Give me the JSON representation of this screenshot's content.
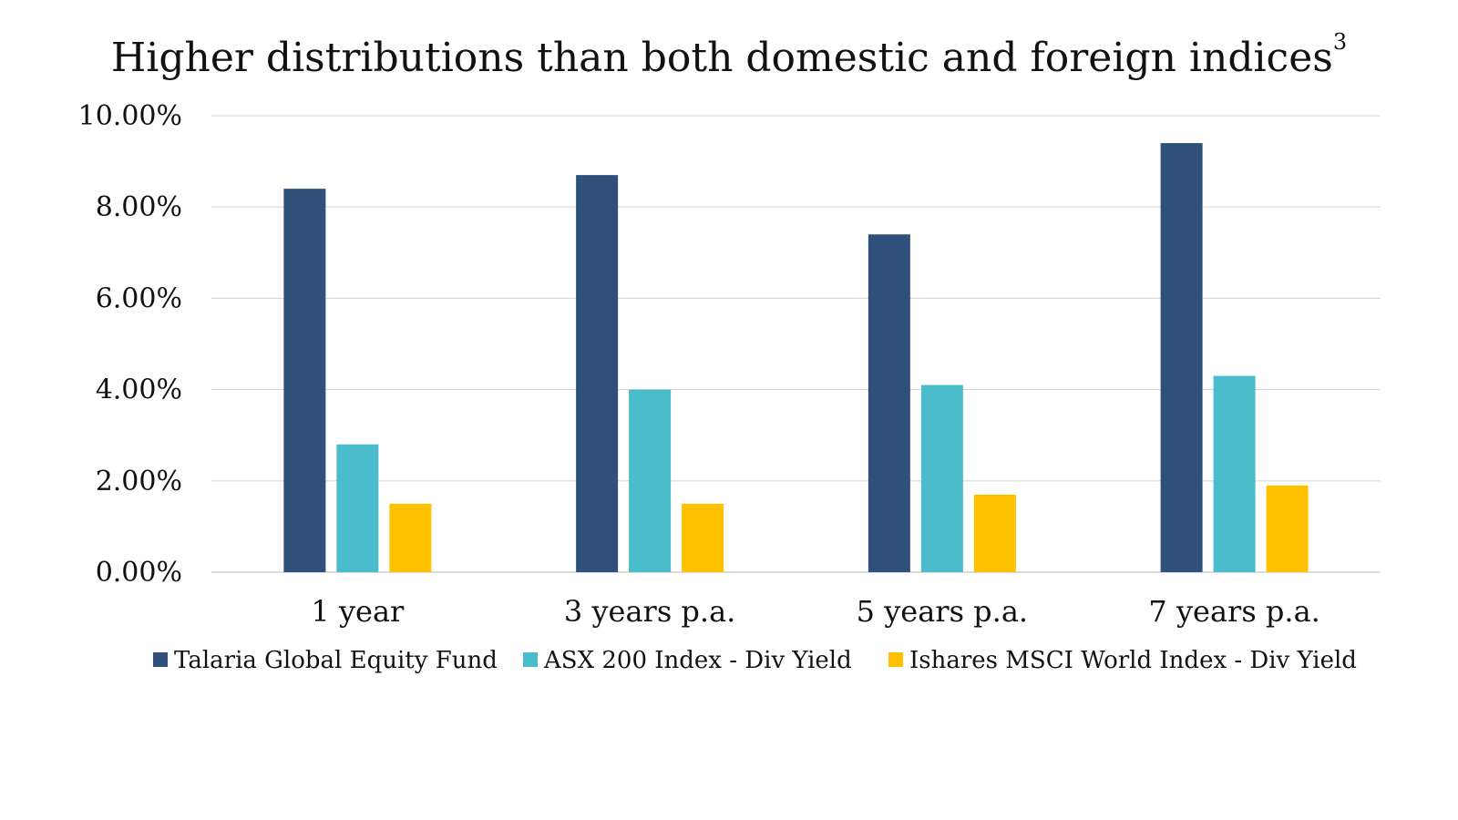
{
  "chart_data": {
    "type": "bar",
    "title": "Higher distributions than both domestic and foreign indices",
    "title_superscript": "3",
    "categories": [
      "1 year",
      "3 years p.a.",
      "5 years p.a.",
      "7 years p.a."
    ],
    "series": [
      {
        "name": "Talaria Global Equity Fund",
        "color": "#2e507a",
        "values": [
          8.4,
          8.7,
          7.4,
          9.4
        ]
      },
      {
        "name": "ASX 200  Index - Div Yield",
        "color": "#4bbccb",
        "values": [
          2.8,
          4.0,
          4.1,
          4.3
        ]
      },
      {
        "name": "Ishares MSCI World Index - Div Yield",
        "color": "#ffc000",
        "values": [
          1.5,
          1.5,
          1.7,
          1.9
        ]
      }
    ],
    "y_ticks": [
      "0.00%",
      "2.00%",
      "4.00%",
      "6.00%",
      "8.00%",
      "10.00%"
    ],
    "ylim": [
      0,
      10
    ],
    "grid": true,
    "legend_position": "bottom"
  }
}
